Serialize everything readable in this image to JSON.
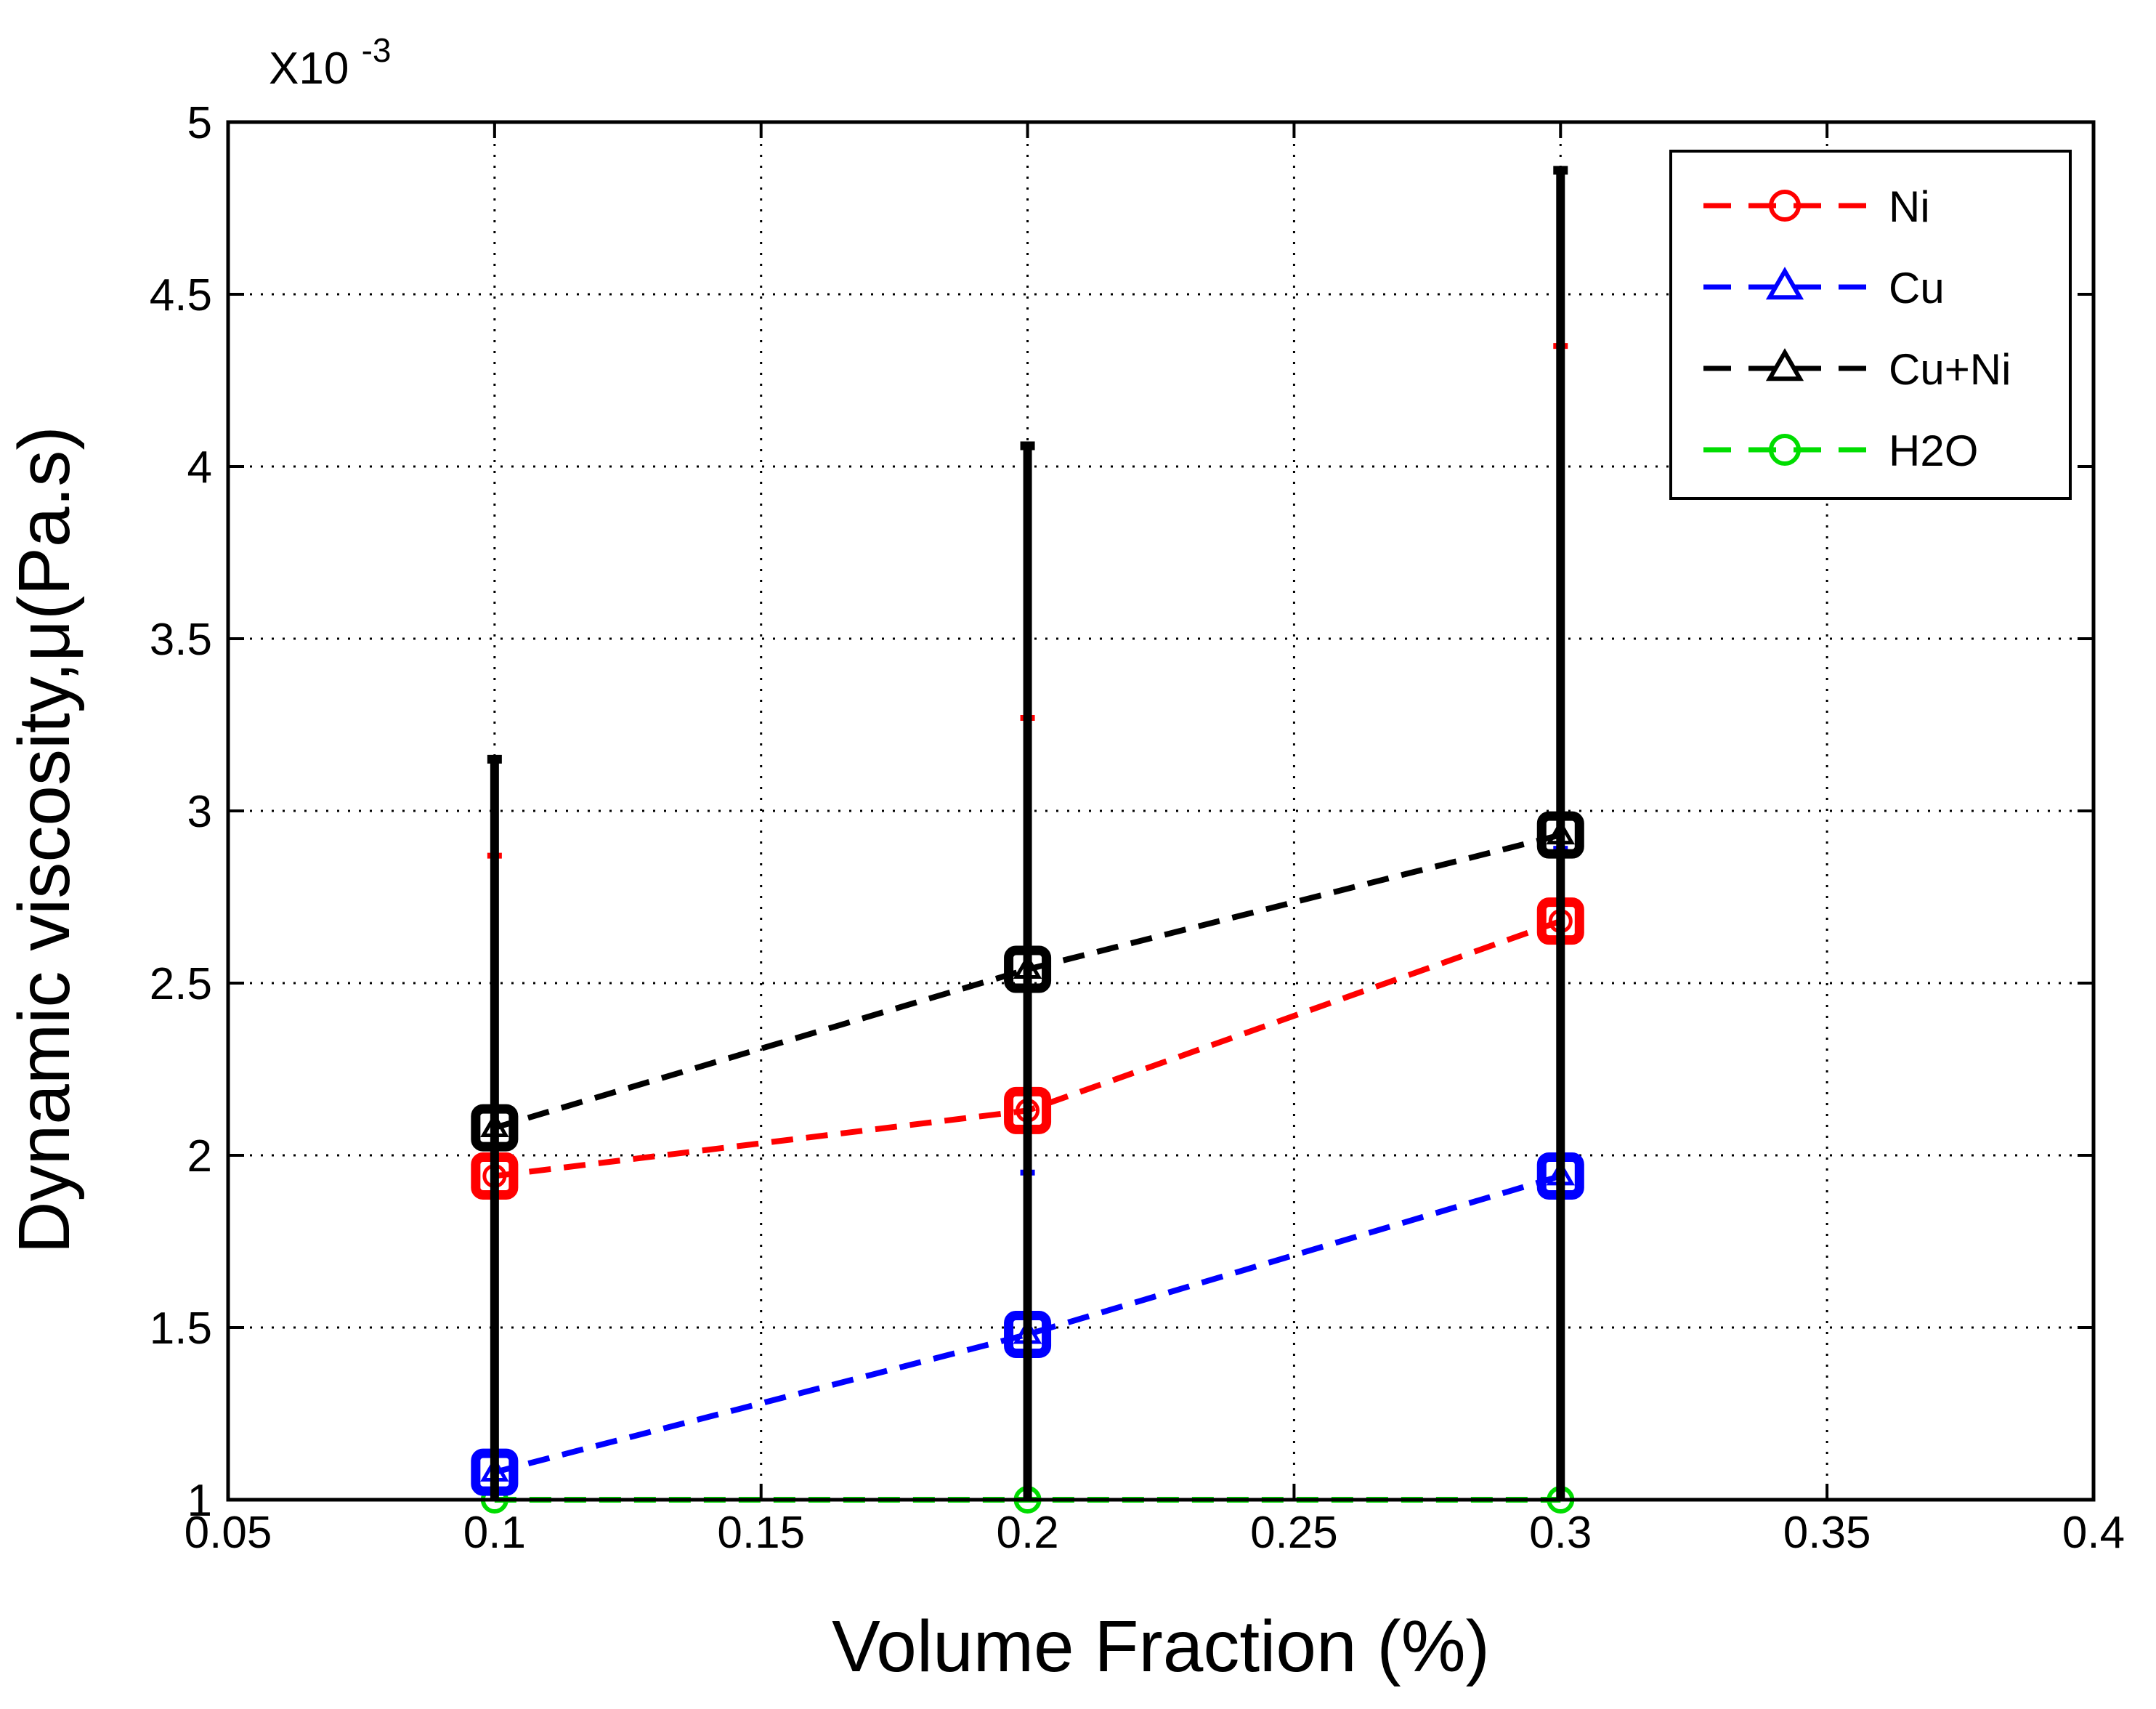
{
  "chart_data": {
    "type": "line",
    "title": "",
    "xlabel": "Volume Fraction (%)",
    "ylabel": "Dynamic viscosity,μ(Pa.s)",
    "y_multiplier_label": "X10",
    "y_multiplier_exponent": "-3",
    "xlim": [
      0.05,
      0.4
    ],
    "ylim": [
      1,
      5
    ],
    "grid": true,
    "legend_position": "top-right",
    "x_ticks": [
      0.05,
      0.1,
      0.15,
      0.2,
      0.25,
      0.3,
      0.35,
      0.4
    ],
    "x_tick_labels": [
      "0.05",
      "0.1",
      "0.15",
      "0.2",
      "0.25",
      "0.3",
      "0.35",
      "0.4"
    ],
    "y_ticks": [
      1,
      1.5,
      2,
      2.5,
      3,
      3.5,
      4,
      4.5,
      5
    ],
    "y_tick_labels": [
      "1",
      "1.5",
      "2",
      "2.5",
      "3",
      "3.5",
      "4",
      "4.5",
      "5"
    ],
    "x": [
      0.1,
      0.2,
      0.3
    ],
    "series": [
      {
        "name": "Ni",
        "color": "#ff0000",
        "marker": "circle",
        "values": [
          1.94,
          2.13,
          2.68
        ],
        "error_upper": [
          2.87,
          3.27,
          4.35
        ]
      },
      {
        "name": "Cu",
        "color": "#0000ff",
        "marker": "triangle",
        "values": [
          1.08,
          1.48,
          1.94
        ],
        "error_upper": [
          1.08,
          1.95,
          2.89
        ]
      },
      {
        "name": "Cu+Ni",
        "color": "#000000",
        "marker": "triangle",
        "values": [
          2.08,
          2.54,
          2.93
        ],
        "error_upper": [
          3.15,
          4.06,
          4.86
        ]
      },
      {
        "name": "H2O",
        "color": "#00dd00",
        "marker": "circle",
        "values": [
          1.0,
          1.0,
          1.0
        ],
        "error_upper": [
          1.0,
          1.0,
          1.0
        ]
      }
    ]
  }
}
